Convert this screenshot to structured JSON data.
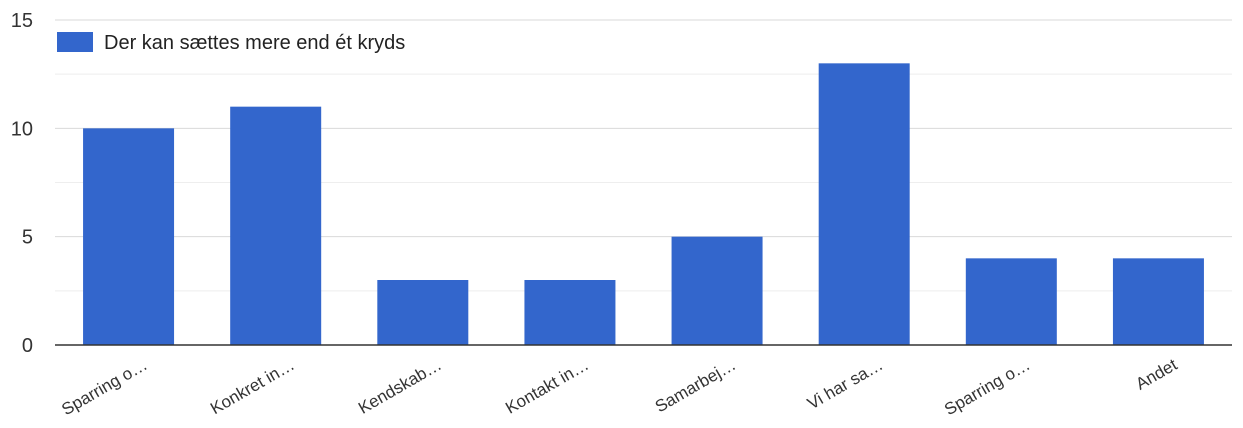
{
  "chart_data": {
    "type": "bar",
    "categories": [
      "Sparring o…",
      "Konkret in…",
      "Kendskab…",
      "Kontakt in…",
      "Samarbej…",
      "Vi har sa…",
      "Sparring o…",
      "Andet"
    ],
    "series": [
      {
        "name": "Der kan sættes mere end ét kryds",
        "values": [
          10,
          11,
          3,
          3,
          5,
          13,
          4,
          4
        ]
      }
    ],
    "ylim": [
      0,
      15
    ],
    "yticks": [
      0,
      5,
      10,
      15
    ],
    "minor_grid": [
      2.5,
      7.5,
      12.5
    ],
    "grid": true,
    "legend_position": "top-left",
    "colors": {
      "bar": "#3366cc",
      "grid": "#d9d9d9",
      "minor_grid": "#eeeeee",
      "baseline": "#333333"
    }
  }
}
